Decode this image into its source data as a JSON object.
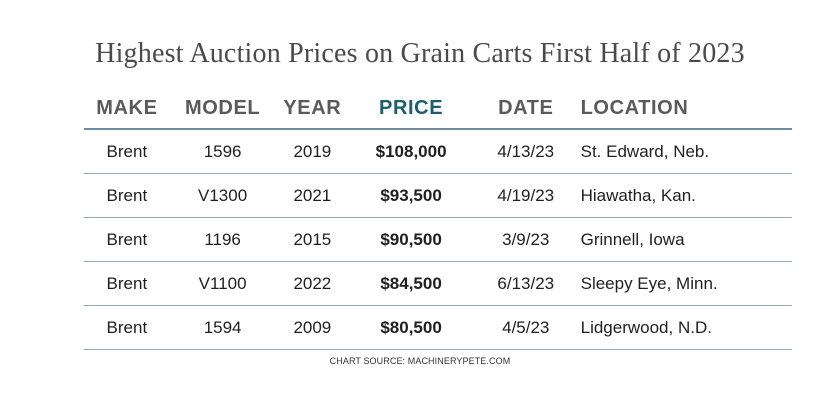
{
  "chart_data": {
    "type": "table",
    "title": "Highest Auction Prices on Grain Carts First Half of 2023",
    "columns": [
      "MAKE",
      "MODEL",
      "YEAR",
      "PRICE",
      "DATE",
      "LOCATION"
    ],
    "highlight_column": "PRICE",
    "highlight_color": "#1b5f6e",
    "rows": [
      [
        "Brent",
        "1596",
        "2019",
        "$108,000",
        "4/13/23",
        "St. Edward, Neb."
      ],
      [
        "Brent",
        "V1300",
        "2021",
        "$93,500",
        "4/19/23",
        "Hiawatha, Kan."
      ],
      [
        "Brent",
        "1196",
        "2015",
        "$90,500",
        "3/9/23",
        "Grinnell, Iowa"
      ],
      [
        "Brent",
        "V1100",
        "2022",
        "$84,500",
        "6/13/23",
        "Sleepy Eye, Minn."
      ],
      [
        "Brent",
        "1594",
        "2009",
        "$80,500",
        "4/5/23",
        "Lidgerwood, N.D."
      ]
    ],
    "source": "CHART SOURCE: MACHINERYPETE.COM"
  }
}
